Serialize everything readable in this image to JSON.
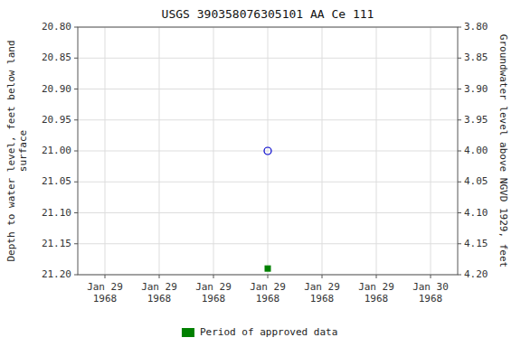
{
  "chart_data": {
    "type": "scatter",
    "title": "USGS 390358076305101 AA Ce 111",
    "y_label": "Depth to water level, feet below land\nsurface",
    "y2_label": "Groundwater level above NGVD 1929, feet",
    "categories": [
      "Jan 29\n1968",
      "Jan 29\n1968",
      "Jan 29\n1968",
      "Jan 29\n1968",
      "Jan 29\n1968",
      "Jan 29\n1968",
      "Jan 30\n1968"
    ],
    "series": [
      {
        "color": "#0000cc",
        "marker": "open-circle",
        "values": [
          null,
          null,
          null,
          21.0,
          null,
          null,
          null
        ]
      },
      {
        "name": "Period of approved data",
        "color": "#008000",
        "marker": "square",
        "values": [
          null,
          null,
          null,
          21.19,
          null,
          null,
          null
        ]
      }
    ],
    "ylim": [
      21.2,
      20.8
    ],
    "yticks": [
      {
        "value": 20.8,
        "label": "20.80"
      },
      20.85,
      {
        "value": 20.9,
        "label": "20.90"
      },
      20.95,
      {
        "value": 21.0,
        "label": "21.00"
      },
      21.05,
      {
        "value": 21.1,
        "label": "21.10"
      },
      21.15,
      {
        "value": 21.2,
        "label": "21.20"
      }
    ],
    "y2lim": [
      4.2,
      3.8
    ],
    "y2ticks": [
      {
        "value": 4.2,
        "label": "4.20"
      },
      4.15,
      {
        "value": 4.1,
        "label": "4.10"
      },
      4.05,
      {
        "value": 4.0,
        "label": "4.00"
      },
      3.95,
      {
        "value": 3.9,
        "label": "3.90"
      },
      3.85,
      {
        "value": 3.8,
        "label": "3.80"
      }
    ],
    "grid": true,
    "legend": "bottom"
  }
}
